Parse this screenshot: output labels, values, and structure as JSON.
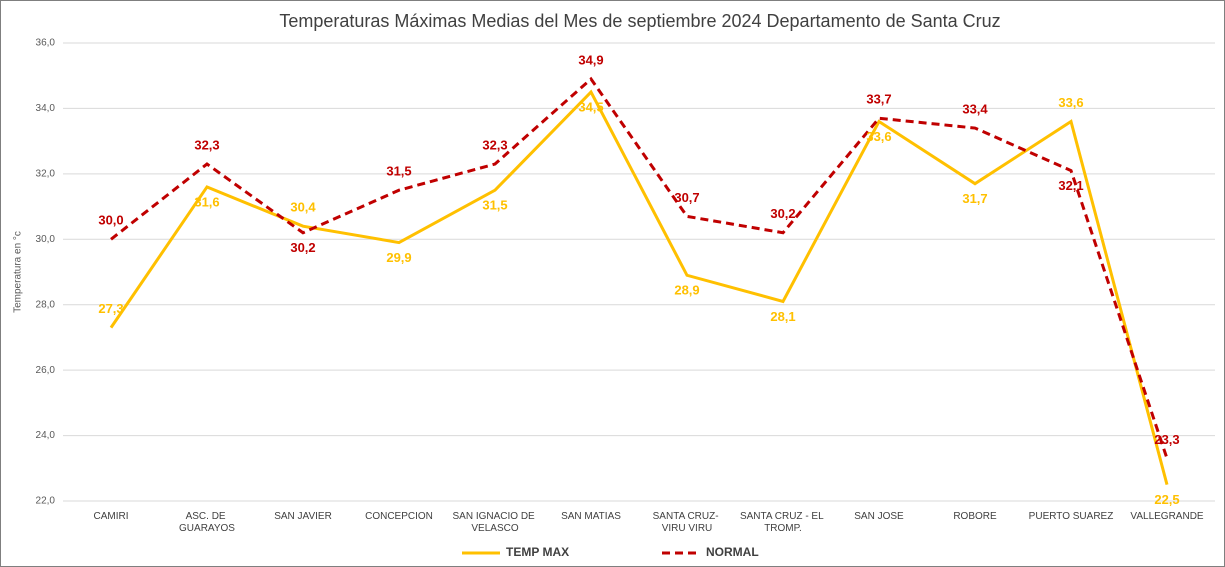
{
  "chart_data": {
    "type": "line",
    "title": "Temperaturas Máximas Medias del Mes de septiembre 2024 Departamento de Santa Cruz",
    "y_label": "Temperatura en °c",
    "categories": [
      "CAMIRI",
      "ASC. DE GUARAYOS",
      "SAN JAVIER",
      "CONCEPCION",
      "SAN IGNACIO DE VELASCO",
      "SAN MATIAS",
      "SANTA CRUZ- VIRU VIRU",
      "SANTA CRUZ - EL TROMP.",
      "SAN JOSE",
      "ROBORE",
      "PUERTO SUAREZ",
      "VALLEGRANDE"
    ],
    "series": [
      {
        "name": "TEMP MAX",
        "color": "#ffc000",
        "dash": false,
        "values": [
          27.3,
          31.6,
          30.4,
          29.9,
          31.5,
          34.5,
          28.9,
          28.1,
          33.6,
          31.7,
          33.6,
          22.5
        ],
        "value_labels": [
          "27,3",
          "31,6",
          "30,4",
          "29,9",
          "31,5",
          "34,5",
          "28,9",
          "28,1",
          "33,6",
          "31,7",
          "33,6",
          "22,5"
        ]
      },
      {
        "name": "NORMAL",
        "color": "#c00000",
        "dash": true,
        "values": [
          30.0,
          32.3,
          30.2,
          31.5,
          32.3,
          34.9,
          30.7,
          30.2,
          33.7,
          33.4,
          32.1,
          23.3
        ],
        "value_labels": [
          "30,0",
          "32,3",
          "30,2",
          "31,5",
          "32,3",
          "34,9",
          "30,7",
          "30,2",
          "33,7",
          "33,4",
          "32,1",
          "23,3"
        ]
      }
    ],
    "ylim": [
      22,
      36
    ],
    "yticks": [
      {
        "value": 22,
        "label": "22,0"
      },
      {
        "value": 24,
        "label": "24,0"
      },
      {
        "value": 26,
        "label": "26,0"
      },
      {
        "value": 28,
        "label": "28,0"
      },
      {
        "value": 30,
        "label": "30,0"
      },
      {
        "value": 32,
        "label": "32,0"
      },
      {
        "value": 34,
        "label": "34,0"
      },
      {
        "value": 36,
        "label": "36,0"
      }
    ],
    "grid": true,
    "legend": "bottom"
  }
}
